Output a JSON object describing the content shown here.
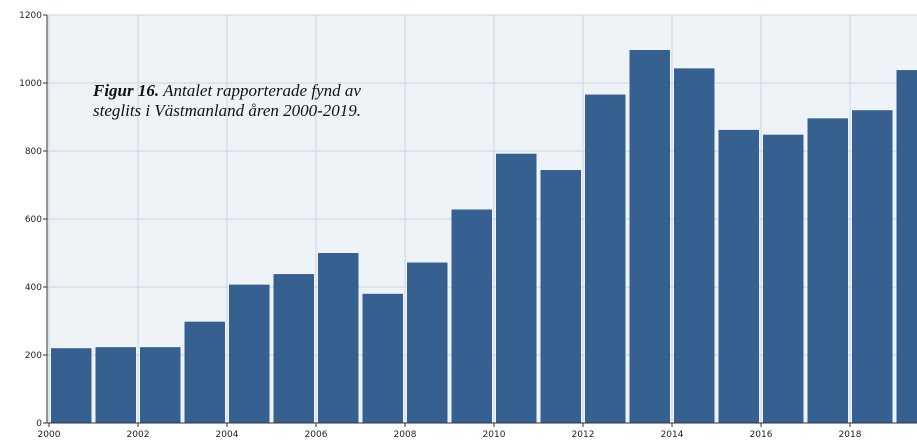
{
  "caption": {
    "figure_label": "Figur 16.",
    "text": " Antalet rapporterade fynd av steglits i Västmanland åren 2000-2019."
  },
  "colors": {
    "bar": "#35608f",
    "background": "#eef3f8",
    "grid": "#cdd6e0"
  },
  "chart_data": {
    "type": "bar",
    "categories": [
      "2000",
      "2001",
      "2002",
      "2003",
      "2004",
      "2005",
      "2006",
      "2007",
      "2008",
      "2009",
      "2010",
      "2011",
      "2012",
      "2013",
      "2014",
      "2015",
      "2016",
      "2017",
      "2018",
      "2019"
    ],
    "values": [
      220,
      223,
      223,
      298,
      407,
      438,
      500,
      380,
      472,
      628,
      792,
      744,
      966,
      1097,
      1043,
      862,
      848,
      896,
      920,
      1038
    ],
    "x_tick_labels": [
      "2000",
      "2002",
      "2004",
      "2006",
      "2008",
      "2010",
      "2012",
      "2014",
      "2016",
      "2018"
    ],
    "y_tick_labels": [
      "0",
      "200",
      "400",
      "600",
      "800",
      "1000",
      "1200"
    ],
    "ylim": [
      0,
      1200
    ],
    "grid": true,
    "legend": "none",
    "title": "",
    "xlabel": "",
    "ylabel": ""
  }
}
